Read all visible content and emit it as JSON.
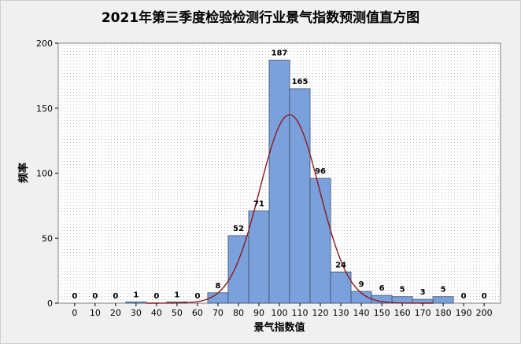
{
  "chart_data": {
    "type": "bar",
    "title": "2021年第三季度检验检测行业景气指数预测值直方图",
    "xlabel": "景气指数值",
    "ylabel": "频率",
    "bin_width": 10,
    "x": [
      0,
      10,
      20,
      30,
      40,
      50,
      60,
      70,
      80,
      90,
      100,
      110,
      120,
      130,
      140,
      150,
      160,
      170,
      180,
      190,
      200
    ],
    "values": [
      0,
      0,
      0,
      1,
      0,
      1,
      0,
      8,
      52,
      71,
      187,
      165,
      96,
      24,
      9,
      6,
      5,
      3,
      5,
      0,
      0
    ],
    "xticks": [
      0,
      10,
      20,
      30,
      40,
      50,
      60,
      70,
      80,
      90,
      100,
      110,
      120,
      130,
      140,
      150,
      160,
      170,
      180,
      190,
      200
    ],
    "yticks": [
      0,
      50,
      100,
      150,
      200
    ],
    "xlim": [
      -8,
      208
    ],
    "ylim": [
      0,
      200
    ],
    "grid": true,
    "fitted_curve": {
      "type": "normal",
      "mean": 105,
      "sd": 14.5,
      "peak": 145
    },
    "colors": {
      "bar_fill": "#7aa1dc",
      "bar_edge": "#3d4f6e",
      "curve": "#8b1a1a",
      "plot_bg": "#ffffff",
      "grid_dot": "#b8b8b8"
    }
  }
}
